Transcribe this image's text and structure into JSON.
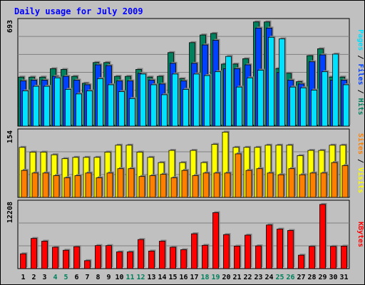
{
  "colors": {
    "background": "#c0c0c0",
    "plot_background": "#c0c0c0",
    "title": "#0000ff",
    "hits": "#00805c",
    "files": "#0040ff",
    "pages": "#00e0ff",
    "visits": "#ffff00",
    "sites": "#ff8000",
    "kbytes": "#ff0000",
    "weekend_label": "#00805c",
    "weekday_label": "#000000"
  },
  "chart_data": {
    "type": "bar",
    "title": "Daily usage for July 2009",
    "categories": [
      "1",
      "2",
      "3",
      "4",
      "5",
      "6",
      "7",
      "8",
      "9",
      "10",
      "11",
      "12",
      "13",
      "14",
      "15",
      "16",
      "17",
      "18",
      "19",
      "20",
      "21",
      "22",
      "23",
      "24",
      "25",
      "26",
      "27",
      "28",
      "29",
      "30",
      "31"
    ],
    "weekend_days": [
      "4",
      "5",
      "11",
      "12",
      "18",
      "19",
      "25",
      "26"
    ],
    "panels": [
      {
        "id": "pages_files_hits",
        "ymax_label": "693",
        "ylim": [
          0,
          693
        ],
        "ylabel_parts": [
          {
            "text": "Hits",
            "color": "#00805c"
          },
          {
            "text": "Files",
            "color": "#0040ff"
          },
          {
            "text": "Pages",
            "color": "#00e0ff"
          }
        ],
        "separator": " / ",
        "series": [
          {
            "name": "Hits",
            "color": "#00805c",
            "values": [
              320,
              320,
              320,
              375,
              370,
              325,
              280,
              415,
              415,
              325,
              325,
              370,
              320,
              325,
              480,
              310,
              545,
              595,
              605,
              405,
              405,
              440,
              680,
              680,
              375,
              345,
              290,
              460,
              505,
              320,
              320
            ]
          },
          {
            "name": "Files",
            "color": "#0040ff",
            "values": [
              295,
              300,
              300,
              325,
              325,
              300,
              270,
              400,
              395,
              295,
              295,
              345,
              300,
              275,
              410,
              295,
              410,
              530,
              560,
              375,
              375,
              400,
              640,
              640,
              350,
              300,
              275,
              420,
              465,
              300,
              300
            ]
          },
          {
            "name": "Pages",
            "color": "#00e0ff",
            "values": [
              230,
              260,
              260,
              315,
              240,
              210,
              230,
              310,
              270,
              225,
              180,
              340,
              270,
              205,
              340,
              240,
              340,
              330,
              355,
              455,
              255,
              315,
              365,
              580,
              570,
              255,
              250,
              235,
              355,
              470,
              270
            ]
          }
        ]
      },
      {
        "id": "sites_visits",
        "ymax_label": "154",
        "ylim": [
          0,
          154
        ],
        "ylabel_parts": [
          {
            "text": "Visits",
            "color": "#ffff00"
          },
          {
            "text": "Sites",
            "color": "#ff8000"
          }
        ],
        "separator": " / ",
        "series": [
          {
            "name": "Visits",
            "color": "#ffff00",
            "values": [
              115,
              104,
              104,
              98,
              89,
              92,
              92,
              92,
              104,
              120,
              120,
              104,
              92,
              80,
              108,
              80,
              108,
              80,
              122,
              150,
              115,
              115,
              115,
              120,
              120,
              120,
              96,
              108,
              108,
              120,
              120
            ]
          },
          {
            "name": "Sites",
            "color": "#ff8000",
            "values": [
              62,
              56,
              56,
              50,
              45,
              50,
              56,
              45,
              56,
              66,
              66,
              48,
              50,
              53,
              45,
              62,
              50,
              56,
              56,
              56,
              100,
              62,
              66,
              56,
              52,
              66,
              52,
              56,
              56,
              80,
              73
            ]
          }
        ]
      },
      {
        "id": "kbytes",
        "ymax_label": "12208",
        "ylim": [
          0,
          12208
        ],
        "ylabel_parts": [
          {
            "text": "KBytes",
            "color": "#ff0000"
          }
        ],
        "separator": "",
        "series": [
          {
            "name": "KBytes",
            "color": "#ff0000",
            "values": [
              2700,
              5500,
              5000,
              3900,
              3350,
              4000,
              1450,
              4200,
              4200,
              3050,
              3050,
              5300,
              3200,
              5000,
              3900,
              3450,
              6350,
              4250,
              10200,
              6200,
              4100,
              6100,
              4150,
              7950,
              7200,
              6950,
              2450,
              4050,
              11700,
              4050,
              4100
            ]
          }
        ]
      }
    ]
  }
}
